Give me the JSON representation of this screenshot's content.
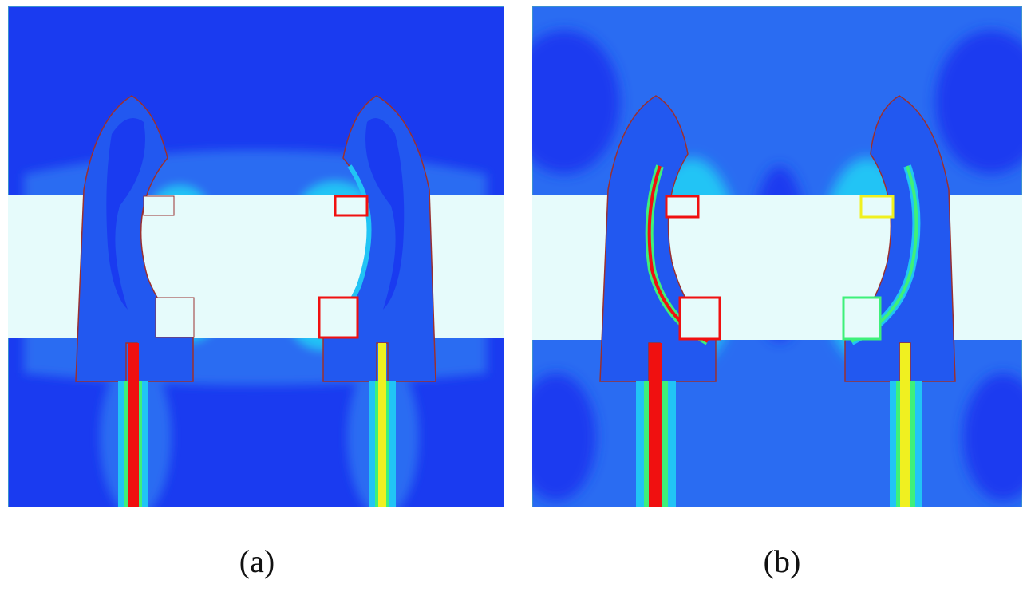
{
  "panels": [
    {
      "id": "a",
      "caption": "(a)"
    },
    {
      "id": "b",
      "caption": "(b)"
    }
  ],
  "colors": {
    "background": "#1a3bf0",
    "low": "#2a6cf2",
    "mid": "#21c4f5",
    "cyan": "#1cf0f0",
    "green": "#3ef07a",
    "yellow": "#f0f020",
    "red": "#f01010",
    "substrate": "#e6fbfb",
    "outline": "#9a3030"
  }
}
